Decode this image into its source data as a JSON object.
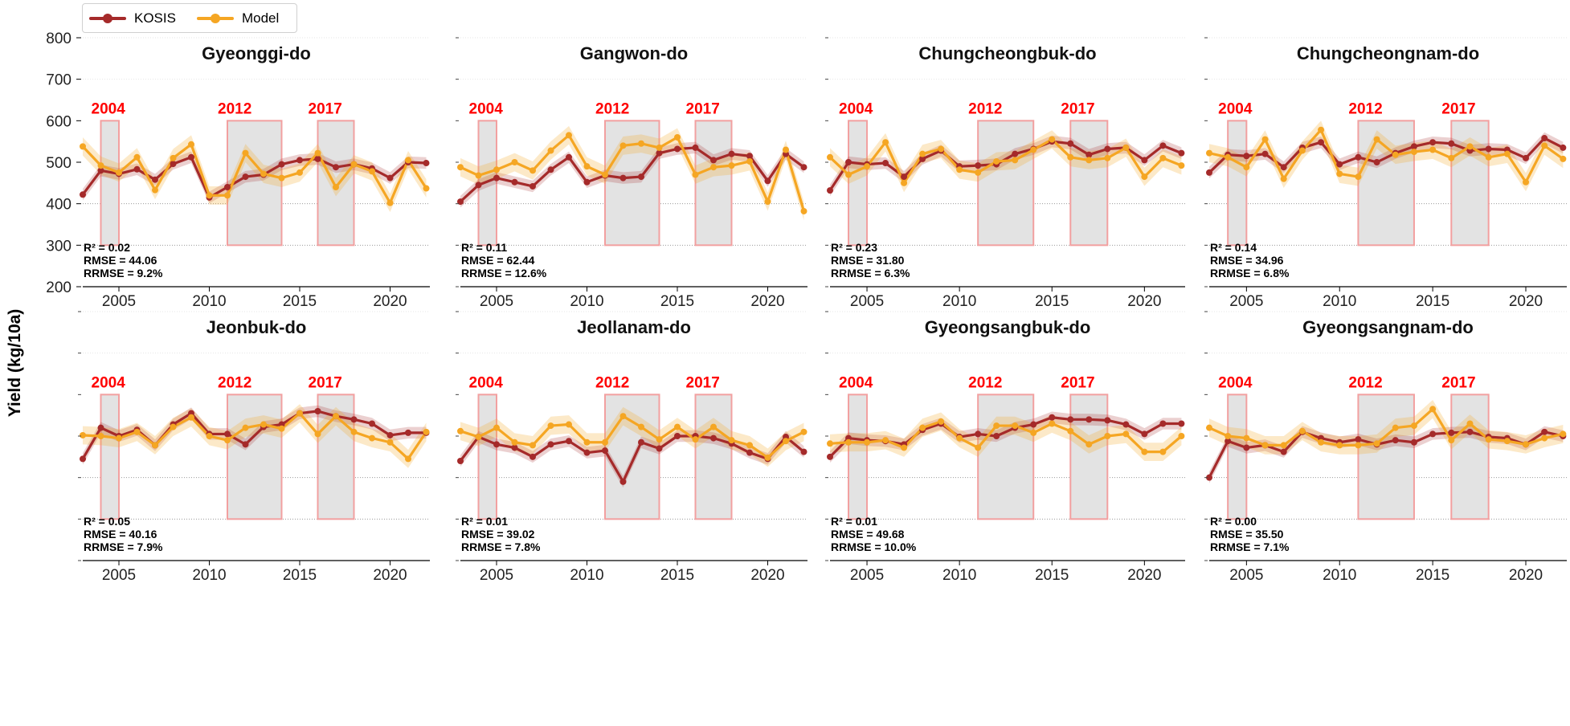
{
  "y_axis_label": "Yield (kg/10a)",
  "legend": [
    {
      "label": "KOSIS",
      "color": "#a52a2a"
    },
    {
      "label": "Model",
      "color": "#f5a623"
    }
  ],
  "highlight_years": [
    {
      "label": "2004",
      "start": 2004,
      "end": 2005
    },
    {
      "label": "2012",
      "start": 2011,
      "end": 2014
    },
    {
      "label": "2017",
      "start": 2016,
      "end": 2018
    }
  ],
  "chart_data": [
    {
      "type": "line",
      "title": "Gyeonggi-do",
      "x": [
        2003,
        2004,
        2005,
        2006,
        2007,
        2008,
        2009,
        2010,
        2011,
        2012,
        2013,
        2014,
        2015,
        2016,
        2017,
        2018,
        2019,
        2020,
        2021,
        2022
      ],
      "series": [
        {
          "name": "KOSIS",
          "values": [
            422,
            480,
            472,
            483,
            458,
            496,
            512,
            415,
            440,
            465,
            470,
            495,
            505,
            508,
            488,
            495,
            485,
            462,
            500,
            498
          ]
        },
        {
          "name": "Model",
          "values": [
            538,
            492,
            475,
            512,
            433,
            510,
            543,
            420,
            420,
            522,
            472,
            462,
            475,
            522,
            440,
            495,
            478,
            402,
            505,
            437
          ]
        }
      ],
      "stats": {
        "r2": "R² = 0.02",
        "rmse": "RMSE = 44.06",
        "rrmse": "RRMSE = 9.2%"
      },
      "ylim": [
        200,
        800
      ],
      "yticks": [
        200,
        300,
        400,
        500,
        600,
        700,
        800
      ],
      "xticks": [
        2005,
        2010,
        2015,
        2020
      ]
    },
    {
      "type": "line",
      "title": "Gangwon-do",
      "x": [
        2003,
        2004,
        2005,
        2006,
        2007,
        2008,
        2009,
        2010,
        2011,
        2012,
        2013,
        2014,
        2015,
        2016,
        2017,
        2018,
        2019,
        2020,
        2021,
        2022
      ],
      "series": [
        {
          "name": "KOSIS",
          "values": [
            405,
            445,
            462,
            452,
            442,
            482,
            512,
            452,
            468,
            462,
            465,
            522,
            532,
            535,
            505,
            520,
            515,
            455,
            520,
            488
          ]
        },
        {
          "name": "Model",
          "values": [
            488,
            468,
            482,
            500,
            480,
            528,
            565,
            490,
            470,
            540,
            545,
            535,
            560,
            470,
            488,
            492,
            502,
            405,
            530,
            382
          ]
        }
      ],
      "stats": {
        "r2": "R² = 0.11",
        "rmse": "RMSE = 62.44",
        "rrmse": "RRMSE = 12.6%"
      },
      "ylim": [
        200,
        800
      ],
      "yticks": [],
      "xticks": [
        2005,
        2010,
        2015,
        2020
      ]
    },
    {
      "type": "line",
      "title": "Chungcheongbuk-do",
      "x": [
        2003,
        2004,
        2005,
        2006,
        2007,
        2008,
        2009,
        2010,
        2011,
        2012,
        2013,
        2014,
        2015,
        2016,
        2017,
        2018,
        2019,
        2020,
        2021,
        2022
      ],
      "series": [
        {
          "name": "KOSIS",
          "values": [
            432,
            500,
            495,
            498,
            465,
            508,
            528,
            490,
            492,
            495,
            520,
            532,
            550,
            545,
            518,
            532,
            535,
            505,
            540,
            522
          ]
        },
        {
          "name": "Model",
          "values": [
            512,
            470,
            490,
            548,
            450,
            520,
            532,
            482,
            475,
            502,
            505,
            530,
            555,
            512,
            505,
            510,
            535,
            465,
            510,
            492
          ]
        }
      ],
      "stats": {
        "r2": "R² = 0.23",
        "rmse": "RMSE = 31.80",
        "rrmse": "RRMSE = 6.3%"
      },
      "ylim": [
        200,
        800
      ],
      "yticks": [],
      "xticks": [
        2005,
        2010,
        2015,
        2020
      ]
    },
    {
      "type": "line",
      "title": "Chungcheongnam-do",
      "x": [
        2003,
        2004,
        2005,
        2006,
        2007,
        2008,
        2009,
        2010,
        2011,
        2012,
        2013,
        2014,
        2015,
        2016,
        2017,
        2018,
        2019,
        2020,
        2021,
        2022
      ],
      "series": [
        {
          "name": "KOSIS",
          "values": [
            475,
            518,
            515,
            520,
            488,
            535,
            548,
            495,
            512,
            500,
            522,
            538,
            548,
            545,
            528,
            532,
            530,
            510,
            558,
            535
          ]
        },
        {
          "name": "Model",
          "values": [
            522,
            512,
            488,
            555,
            460,
            528,
            578,
            472,
            465,
            555,
            518,
            525,
            530,
            510,
            538,
            512,
            520,
            452,
            540,
            508
          ]
        }
      ],
      "stats": {
        "r2": "R² = 0.14",
        "rmse": "RMSE = 34.96",
        "rrmse": "RRMSE = 6.8%"
      },
      "ylim": [
        200,
        800
      ],
      "yticks": [],
      "xticks": [
        2005,
        2010,
        2015,
        2020
      ]
    },
    {
      "type": "line",
      "title": "Jeonbuk-do",
      "x": [
        2003,
        2004,
        2005,
        2006,
        2007,
        2008,
        2009,
        2010,
        2011,
        2012,
        2013,
        2014,
        2015,
        2016,
        2017,
        2018,
        2019,
        2020,
        2021,
        2022
      ],
      "series": [
        {
          "name": "KOSIS",
          "values": [
            445,
            520,
            500,
            515,
            478,
            528,
            555,
            505,
            505,
            480,
            522,
            528,
            555,
            560,
            548,
            540,
            530,
            502,
            508,
            508
          ]
        },
        {
          "name": "Model",
          "values": [
            502,
            500,
            495,
            510,
            478,
            522,
            545,
            500,
            490,
            520,
            528,
            518,
            555,
            505,
            548,
            510,
            495,
            485,
            445,
            510
          ]
        }
      ],
      "stats": {
        "r2": "R² = 0.05",
        "rmse": "RMSE = 40.16",
        "rrmse": "RRMSE = 7.9%"
      },
      "ylim": [
        200,
        800
      ],
      "yticks": [],
      "xticks": [
        2005,
        2010,
        2015,
        2020
      ]
    },
    {
      "type": "line",
      "title": "Jeollanam-do",
      "x": [
        2003,
        2004,
        2005,
        2006,
        2007,
        2008,
        2009,
        2010,
        2011,
        2012,
        2013,
        2014,
        2015,
        2016,
        2017,
        2018,
        2019,
        2020,
        2021,
        2022
      ],
      "series": [
        {
          "name": "KOSIS",
          "values": [
            440,
            498,
            480,
            472,
            450,
            480,
            488,
            460,
            465,
            390,
            485,
            470,
            500,
            500,
            495,
            482,
            460,
            445,
            498,
            462
          ]
        },
        {
          "name": "Model",
          "values": [
            512,
            498,
            520,
            485,
            478,
            525,
            528,
            485,
            485,
            548,
            522,
            492,
            522,
            492,
            522,
            490,
            478,
            448,
            488,
            510
          ]
        }
      ],
      "stats": {
        "r2": "R² = 0.01",
        "rmse": "RMSE = 39.02",
        "rrmse": "RRMSE = 7.8%"
      },
      "ylim": [
        200,
        800
      ],
      "yticks": [],
      "xticks": [
        2005,
        2010,
        2015,
        2020
      ]
    },
    {
      "type": "line",
      "title": "Gyeongsangbuk-do",
      "x": [
        2003,
        2004,
        2005,
        2006,
        2007,
        2008,
        2009,
        2010,
        2011,
        2012,
        2013,
        2014,
        2015,
        2016,
        2017,
        2018,
        2019,
        2020,
        2021,
        2022
      ],
      "series": [
        {
          "name": "KOSIS",
          "values": [
            450,
            495,
            490,
            488,
            480,
            515,
            530,
            498,
            505,
            500,
            520,
            528,
            545,
            540,
            540,
            538,
            528,
            505,
            530,
            530
          ]
        },
        {
          "name": "Model",
          "values": [
            482,
            485,
            485,
            490,
            472,
            520,
            535,
            495,
            472,
            525,
            525,
            508,
            530,
            512,
            480,
            500,
            505,
            462,
            462,
            500
          ]
        }
      ],
      "stats": {
        "r2": "R² = 0.01",
        "rmse": "RMSE = 49.68",
        "rrmse": "RRMSE = 10.0%"
      },
      "ylim": [
        200,
        800
      ],
      "yticks": [],
      "xticks": [
        2005,
        2010,
        2015,
        2020
      ]
    },
    {
      "type": "line",
      "title": "Gyeongsangnam-do",
      "x": [
        2003,
        2004,
        2005,
        2006,
        2007,
        2008,
        2009,
        2010,
        2011,
        2012,
        2013,
        2014,
        2015,
        2016,
        2017,
        2018,
        2019,
        2020,
        2021,
        2022
      ],
      "series": [
        {
          "name": "KOSIS",
          "values": [
            400,
            488,
            472,
            478,
            462,
            510,
            495,
            485,
            492,
            480,
            490,
            485,
            505,
            508,
            510,
            498,
            495,
            480,
            510,
            500
          ]
        },
        {
          "name": "Model",
          "values": [
            520,
            500,
            495,
            478,
            478,
            512,
            485,
            478,
            478,
            482,
            520,
            525,
            565,
            490,
            530,
            492,
            488,
            480,
            495,
            505
          ]
        }
      ],
      "stats": {
        "r2": "R² = 0.00",
        "rmse": "RMSE = 35.50",
        "rrmse": "RRMSE = 7.1%"
      },
      "ylim": [
        200,
        800
      ],
      "yticks": [],
      "xticks": [
        2005,
        2010,
        2015,
        2020
      ]
    }
  ]
}
